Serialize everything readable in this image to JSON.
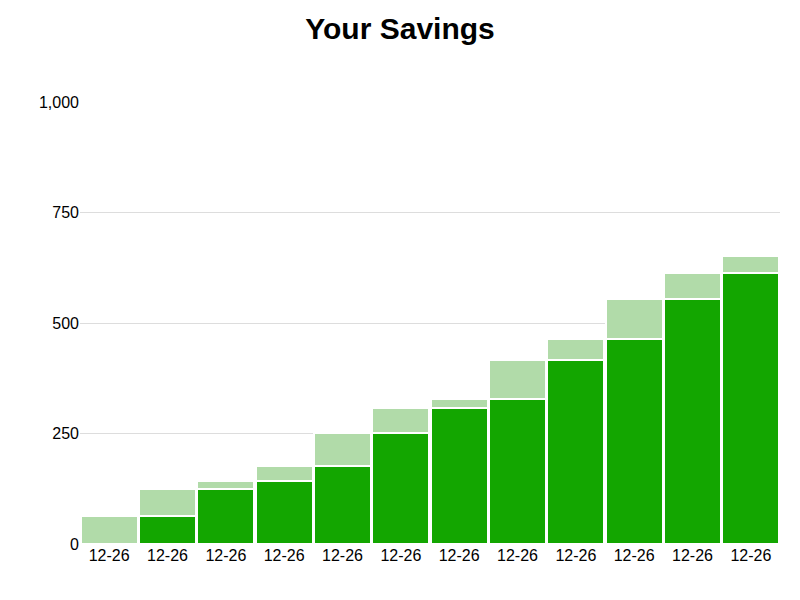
{
  "chart_data": {
    "type": "bar",
    "title": "Your Savings",
    "categories": [
      "12-26",
      "12-26",
      "12-26",
      "12-26",
      "12-26",
      "12-26",
      "12-26",
      "12-26",
      "12-26",
      "12-26",
      "12-26",
      "12-26"
    ],
    "series": [
      {
        "color": "#13a600",
        "values": [
          0,
          63,
          124,
          143,
          176,
          251,
          308,
          328,
          416,
          464,
          554,
          613
        ]
      },
      {
        "color": "#b1dba9",
        "values": [
          63,
          61,
          19,
          33,
          75,
          57,
          20,
          88,
          48,
          90,
          59,
          39
        ]
      }
    ],
    "stacked": true,
    "ylim": [
      0,
      1000
    ],
    "yticks": [
      0,
      250,
      500,
      750,
      {
        "value": 1000,
        "label": "1,000"
      }
    ],
    "grid": true
  }
}
